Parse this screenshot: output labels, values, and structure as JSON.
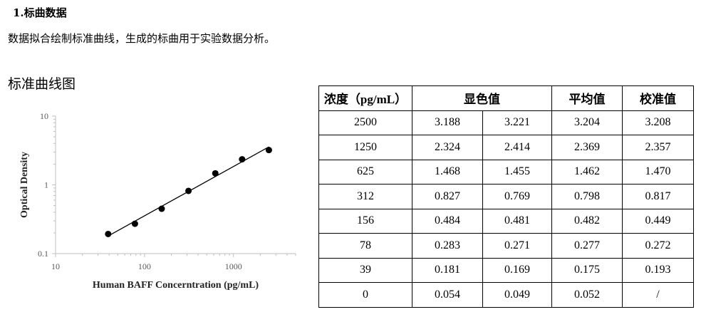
{
  "heading": "1.标曲数据",
  "intro": "数据拟合绘制标准曲线，生成的标曲用于实验数据分析。",
  "chart_title": "标准曲线图",
  "chart_data": {
    "type": "scatter",
    "x_scale": "log",
    "y_scale": "log",
    "xlabel": "Human BAFF Concerntration (pg/mL)",
    "ylabel": "Optical Density",
    "xlim": [
      10,
      5000
    ],
    "ylim": [
      0.1,
      10
    ],
    "x_ticks": [
      "10",
      "100",
      "1000"
    ],
    "y_ticks": [
      "10",
      "1",
      "0.1"
    ],
    "grid": false,
    "trendline": true,
    "series": [
      {
        "x": [
          39,
          78,
          156,
          312,
          625,
          1250,
          2500
        ],
        "y": [
          0.193,
          0.272,
          0.449,
          0.817,
          1.47,
          2.357,
          3.208
        ]
      }
    ]
  },
  "table": {
    "headers": [
      "浓度（pg/mL）",
      "显色值",
      "平均值",
      "校准值"
    ],
    "rows": [
      [
        "2500",
        "3.188",
        "3.221",
        "3.204",
        "3.208"
      ],
      [
        "1250",
        "2.324",
        "2.414",
        "2.369",
        "2.357"
      ],
      [
        "625",
        "1.468",
        "1.455",
        "1.462",
        "1.470"
      ],
      [
        "312",
        "0.827",
        "0.769",
        "0.798",
        "0.817"
      ],
      [
        "156",
        "0.484",
        "0.481",
        "0.482",
        "0.449"
      ],
      [
        "78",
        "0.283",
        "0.271",
        "0.277",
        "0.272"
      ],
      [
        "39",
        "0.181",
        "0.169",
        "0.175",
        "0.193"
      ],
      [
        "0",
        "0.054",
        "0.049",
        "0.052",
        "/"
      ]
    ]
  }
}
